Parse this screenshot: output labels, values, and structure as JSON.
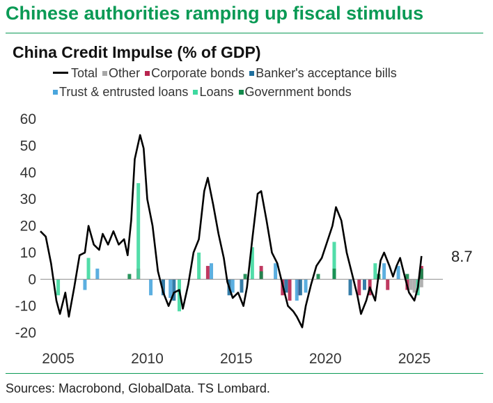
{
  "headline": "Chinese authorities ramping up fiscal stimulus",
  "source": "Sources: Macrobond, GlobalData. TS Lombard.",
  "colors": {
    "accent": "#0a9a55",
    "total": "#000000",
    "other": "#a8a8a8",
    "corporate_bonds": "#b8244f",
    "bankers_acceptance": "#1f6f9e",
    "trust_loans": "#4aa6dd",
    "loans": "#3fd9a0",
    "government_bonds": "#138a4c"
  },
  "chart_data": {
    "type": "area",
    "title": "China Credit Impulse (% of GDP)",
    "xlabel": "",
    "ylabel": "",
    "xlim": [
      2004.0,
      2026.6
    ],
    "ylim": [
      -20,
      60
    ],
    "x_ticks": [
      2005,
      2010,
      2015,
      2020,
      2025
    ],
    "y_ticks": [
      60,
      50,
      40,
      30,
      20,
      10,
      0,
      -10,
      -20
    ],
    "grid": false,
    "legend_position": "top",
    "end_label": "8.7",
    "series": [
      {
        "name": "Total",
        "kind": "line",
        "color": "#000000",
        "points": [
          [
            2004.0,
            18
          ],
          [
            2004.3,
            16
          ],
          [
            2004.6,
            6
          ],
          [
            2004.9,
            -8
          ],
          [
            2005.1,
            -13
          ],
          [
            2005.4,
            -5
          ],
          [
            2005.6,
            -14
          ],
          [
            2005.9,
            -3
          ],
          [
            2006.2,
            9
          ],
          [
            2006.5,
            10
          ],
          [
            2006.7,
            20
          ],
          [
            2007.0,
            13
          ],
          [
            2007.3,
            11
          ],
          [
            2007.5,
            17
          ],
          [
            2007.8,
            13
          ],
          [
            2008.1,
            18
          ],
          [
            2008.4,
            13
          ],
          [
            2008.7,
            15
          ],
          [
            2008.9,
            9
          ],
          [
            2009.1,
            22
          ],
          [
            2009.3,
            45
          ],
          [
            2009.6,
            54
          ],
          [
            2009.8,
            49
          ],
          [
            2010.0,
            30
          ],
          [
            2010.3,
            20
          ],
          [
            2010.6,
            3
          ],
          [
            2010.9,
            -5
          ],
          [
            2011.2,
            -10
          ],
          [
            2011.5,
            -5
          ],
          [
            2011.8,
            -4
          ],
          [
            2012.0,
            -11
          ],
          [
            2012.3,
            -2
          ],
          [
            2012.6,
            10
          ],
          [
            2012.9,
            15
          ],
          [
            2013.2,
            33
          ],
          [
            2013.4,
            38
          ],
          [
            2013.7,
            28
          ],
          [
            2014.0,
            17
          ],
          [
            2014.3,
            8
          ],
          [
            2014.5,
            -1
          ],
          [
            2014.8,
            -7
          ],
          [
            2015.1,
            -5
          ],
          [
            2015.4,
            -10
          ],
          [
            2015.6,
            -3
          ],
          [
            2015.9,
            15
          ],
          [
            2016.2,
            32
          ],
          [
            2016.4,
            33
          ],
          [
            2016.7,
            22
          ],
          [
            2017.0,
            10
          ],
          [
            2017.3,
            6
          ],
          [
            2017.6,
            -2
          ],
          [
            2017.9,
            -10
          ],
          [
            2018.2,
            -12
          ],
          [
            2018.4,
            -14
          ],
          [
            2018.7,
            -18
          ],
          [
            2018.9,
            -10
          ],
          [
            2019.2,
            -2
          ],
          [
            2019.5,
            5
          ],
          [
            2019.8,
            8
          ],
          [
            2020.1,
            14
          ],
          [
            2020.4,
            20
          ],
          [
            2020.6,
            27
          ],
          [
            2020.9,
            22
          ],
          [
            2021.2,
            10
          ],
          [
            2021.5,
            2
          ],
          [
            2021.8,
            -6
          ],
          [
            2022.0,
            -13
          ],
          [
            2022.3,
            -8
          ],
          [
            2022.5,
            -3
          ],
          [
            2022.8,
            -8
          ],
          [
            2023.1,
            7
          ],
          [
            2023.3,
            10
          ],
          [
            2023.6,
            5
          ],
          [
            2023.8,
            1
          ],
          [
            2024.0,
            5
          ],
          [
            2024.2,
            8
          ],
          [
            2024.5,
            0
          ],
          [
            2024.7,
            -5
          ],
          [
            2025.0,
            -8
          ],
          [
            2025.2,
            -3
          ],
          [
            2025.4,
            8.7
          ]
        ]
      },
      {
        "name": "Other",
        "kind": "bar",
        "color": "#a8a8a8",
        "points": [
          [
            2024.8,
            -4
          ],
          [
            2025.0,
            -5
          ],
          [
            2025.2,
            -4
          ],
          [
            2025.4,
            -3
          ]
        ]
      },
      {
        "name": "Corporate bonds",
        "kind": "bar",
        "color": "#b8244f",
        "points": [
          [
            2009.5,
            4
          ],
          [
            2013.4,
            5
          ],
          [
            2016.4,
            5
          ],
          [
            2017.6,
            -6
          ],
          [
            2018.0,
            -8
          ],
          [
            2018.5,
            -6
          ],
          [
            2021.9,
            -6
          ],
          [
            2022.5,
            -6
          ],
          [
            2023.5,
            -4
          ],
          [
            2024.6,
            -4
          ],
          [
            2025.4,
            5
          ]
        ]
      },
      {
        "name": "Banker's acceptance bills",
        "kind": "bar",
        "color": "#1f6f9e",
        "points": [
          [
            2010.9,
            -6
          ],
          [
            2011.5,
            -8
          ],
          [
            2014.6,
            -6
          ],
          [
            2015.3,
            -5
          ],
          [
            2017.8,
            -5
          ],
          [
            2018.6,
            -6
          ],
          [
            2021.4,
            -6
          ],
          [
            2022.2,
            -4
          ]
        ]
      },
      {
        "name": "Trust & entrusted loans",
        "kind": "bar",
        "color": "#4aa6dd",
        "points": [
          [
            2006.5,
            -4
          ],
          [
            2007.2,
            4
          ],
          [
            2010.2,
            -6
          ],
          [
            2011.3,
            -7
          ],
          [
            2013.6,
            6
          ],
          [
            2014.8,
            -5
          ],
          [
            2017.2,
            6
          ],
          [
            2018.4,
            -8
          ],
          [
            2018.9,
            -5
          ],
          [
            2023.3,
            6
          ],
          [
            2024.1,
            5
          ]
        ]
      },
      {
        "name": "Loans",
        "kind": "bar",
        "color": "#3fd9a0",
        "points": [
          [
            2005.0,
            -6
          ],
          [
            2006.7,
            8
          ],
          [
            2009.5,
            36
          ],
          [
            2011.8,
            -12
          ],
          [
            2012.9,
            10
          ],
          [
            2015.9,
            12
          ],
          [
            2020.5,
            14
          ],
          [
            2022.8,
            6
          ],
          [
            2025.2,
            -6
          ]
        ]
      },
      {
        "name": "Government bonds",
        "kind": "bar",
        "color": "#138a4c",
        "points": [
          [
            2009.0,
            2
          ],
          [
            2015.5,
            2
          ],
          [
            2016.4,
            3
          ],
          [
            2019.6,
            2
          ],
          [
            2020.5,
            4
          ],
          [
            2023.0,
            2
          ],
          [
            2024.6,
            2
          ],
          [
            2025.4,
            4
          ]
        ]
      }
    ]
  }
}
